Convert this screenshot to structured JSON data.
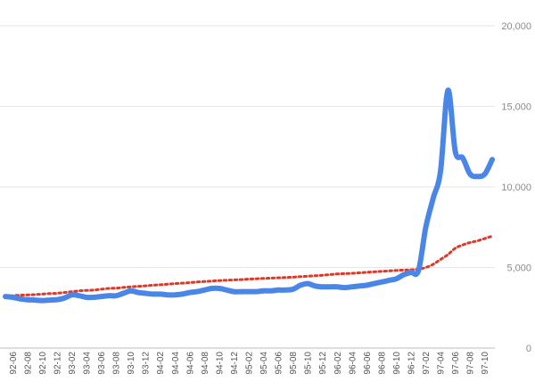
{
  "chart_data": {
    "type": "line",
    "title": "",
    "xlabel": "",
    "ylabel": "",
    "ylim": [
      0,
      20000
    ],
    "y_ticks": [
      {
        "value": 0,
        "label": "0"
      },
      {
        "value": 5000,
        "label": "5,000"
      },
      {
        "value": 10000,
        "label": "10,000"
      },
      {
        "value": 15000,
        "label": "15,000"
      },
      {
        "value": 20000,
        "label": "20,000"
      }
    ],
    "y_axis_position": "right",
    "grid": true,
    "legend": "none",
    "x": [
      "92-05",
      "92-06",
      "92-07",
      "92-08",
      "92-09",
      "92-10",
      "92-11",
      "92-12",
      "93-01",
      "93-02",
      "93-03",
      "93-04",
      "93-05",
      "93-06",
      "93-07",
      "93-08",
      "93-09",
      "93-10",
      "93-11",
      "93-12",
      "94-01",
      "94-02",
      "94-03",
      "94-04",
      "94-05",
      "94-06",
      "94-07",
      "94-08",
      "94-09",
      "94-10",
      "94-11",
      "94-12",
      "95-01",
      "95-02",
      "95-03",
      "95-04",
      "95-05",
      "95-06",
      "95-07",
      "95-08",
      "95-09",
      "95-10",
      "95-11",
      "95-12",
      "96-01",
      "96-02",
      "96-03",
      "96-04",
      "96-05",
      "96-06",
      "96-07",
      "96-08",
      "96-09",
      "96-10",
      "96-11",
      "96-12",
      "97-01",
      "97-02",
      "97-03",
      "97-04",
      "97-05",
      "97-06",
      "97-07",
      "97-08",
      "97-09",
      "97-10",
      "97-11"
    ],
    "x_tick_labels": [
      "92-06",
      "92-08",
      "92-10",
      "92-12",
      "93-02",
      "93-04",
      "93-06",
      "93-08",
      "93-10",
      "93-12",
      "94-02",
      "94-04",
      "94-06",
      "94-08",
      "94-10",
      "94-12",
      "95-02",
      "95-04",
      "95-06",
      "95-08",
      "95-10",
      "95-12",
      "96-02",
      "96-04",
      "96-06",
      "96-08",
      "96-10",
      "96-12",
      "97-02",
      "97-04",
      "97-06",
      "97-08",
      "97-10"
    ],
    "series": [
      {
        "color": "#4a86e8",
        "style": "solid",
        "values": [
          3200,
          3150,
          3050,
          3000,
          2980,
          2950,
          2980,
          3000,
          3100,
          3300,
          3250,
          3150,
          3150,
          3200,
          3250,
          3250,
          3400,
          3550,
          3450,
          3400,
          3350,
          3350,
          3300,
          3300,
          3350,
          3450,
          3500,
          3600,
          3700,
          3700,
          3600,
          3500,
          3500,
          3500,
          3500,
          3550,
          3550,
          3600,
          3600,
          3650,
          3900,
          4000,
          3850,
          3800,
          3800,
          3800,
          3750,
          3800,
          3850,
          3900,
          4000,
          4100,
          4200,
          4300,
          4550,
          4700,
          4800,
          7500,
          9300,
          11000,
          16000,
          12200,
          11800,
          10800,
          10650,
          10800,
          11700
        ]
      },
      {
        "color": "#d93b2b",
        "style": "dotted",
        "values": [
          3200,
          3250,
          3280,
          3300,
          3320,
          3350,
          3380,
          3400,
          3450,
          3500,
          3550,
          3580,
          3600,
          3650,
          3700,
          3720,
          3760,
          3800,
          3830,
          3860,
          3900,
          3930,
          3960,
          4000,
          4030,
          4060,
          4100,
          4130,
          4160,
          4190,
          4210,
          4230,
          4250,
          4280,
          4300,
          4320,
          4340,
          4360,
          4380,
          4400,
          4430,
          4460,
          4490,
          4520,
          4560,
          4600,
          4620,
          4640,
          4670,
          4700,
          4730,
          4760,
          4790,
          4820,
          4840,
          4860,
          4900,
          5000,
          5200,
          5500,
          5800,
          6200,
          6400,
          6550,
          6650,
          6800,
          6950
        ]
      }
    ]
  }
}
